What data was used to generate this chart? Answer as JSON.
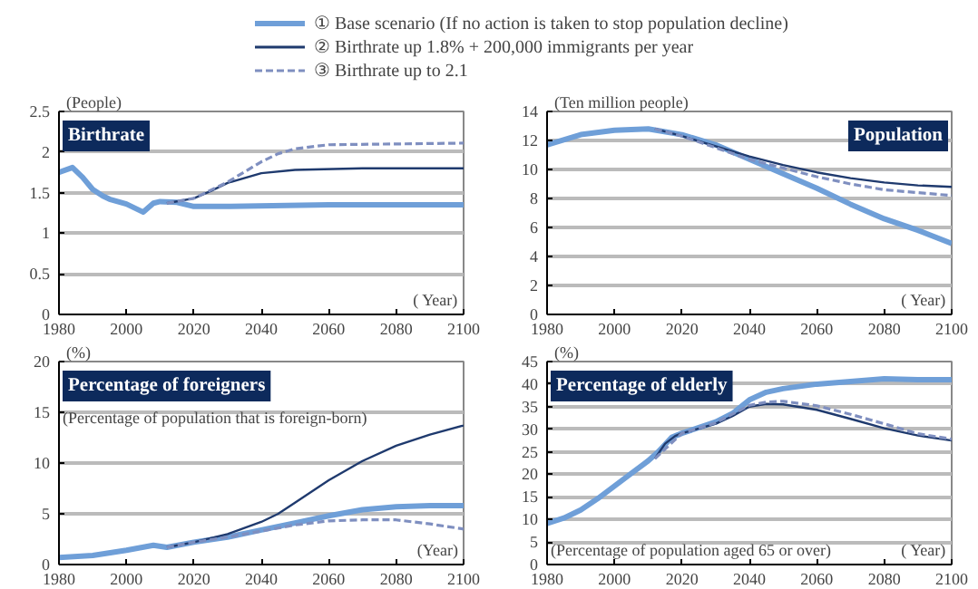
{
  "chart_data": [
    {
      "type": "line",
      "title": "Birthrate",
      "ylabel": "(People)",
      "xlabel": "( Year)",
      "xlim": [
        1980,
        2100
      ],
      "xticks": [
        1980,
        2000,
        2020,
        2040,
        2060,
        2080,
        2100
      ],
      "ylim": [
        0,
        2.5
      ],
      "yticks": [
        0,
        {
          "value": 0.5,
          "label": "0.5"
        },
        1,
        {
          "value": 1.5,
          "label": "1.5"
        },
        2,
        {
          "value": 2.5,
          "label": "2.5"
        }
      ],
      "grid": "y",
      "legend": "top",
      "series": [
        {
          "name": "① Base scenario (If no action is taken to stop population decline)",
          "color": "#6f9fd8",
          "line_style": "solid",
          "x": [
            1980,
            1984,
            1987,
            1990,
            1993,
            1995,
            2000,
            2005,
            2008,
            2010,
            2015,
            2020,
            2030,
            2060,
            2100
          ],
          "values": [
            1.75,
            1.81,
            1.69,
            1.54,
            1.46,
            1.42,
            1.36,
            1.26,
            1.37,
            1.39,
            1.38,
            1.33,
            1.33,
            1.35,
            1.35
          ]
        },
        {
          "name": "② Birthrate up 1.8% + 200,000 immigrants per year",
          "color": "#1f3a6e",
          "line_style": "solid",
          "x": [
            2012,
            2020,
            2025,
            2030,
            2040,
            2050,
            2070,
            2100
          ],
          "values": [
            1.37,
            1.43,
            1.52,
            1.62,
            1.74,
            1.78,
            1.8,
            1.8
          ]
        },
        {
          "name": "③ Birthrate up to 2.1",
          "color": "#7f8fc0",
          "line_style": "dashed",
          "x": [
            2012,
            2020,
            2030,
            2040,
            2045,
            2050,
            2060,
            2080,
            2100
          ],
          "values": [
            1.37,
            1.43,
            1.63,
            1.88,
            1.98,
            2.04,
            2.09,
            2.1,
            2.11
          ]
        }
      ]
    },
    {
      "type": "line",
      "title": "Population",
      "ylabel": "(Ten million people)",
      "xlabel": "( Year)",
      "xlim": [
        1980,
        2100
      ],
      "xticks": [
        1980,
        2000,
        2020,
        2040,
        2060,
        2080,
        2100
      ],
      "ylim": [
        0,
        14
      ],
      "yticks": [
        0,
        2,
        4,
        6,
        8,
        10,
        12,
        14
      ],
      "grid": "y",
      "series": [
        {
          "color": "#6f9fd8",
          "line_style": "solid",
          "x": [
            1980,
            1990,
            2000,
            2010,
            2020,
            2030,
            2040,
            2050,
            2060,
            2070,
            2080,
            2090,
            2100
          ],
          "values": [
            11.7,
            12.4,
            12.7,
            12.8,
            12.4,
            11.7,
            10.7,
            9.7,
            8.7,
            7.6,
            6.6,
            5.8,
            4.9
          ]
        },
        {
          "color": "#1f3a6e",
          "line_style": "solid",
          "x": [
            2012,
            2020,
            2030,
            2040,
            2050,
            2060,
            2070,
            2080,
            2090,
            2100
          ],
          "values": [
            12.8,
            12.3,
            11.6,
            10.9,
            10.3,
            9.8,
            9.4,
            9.1,
            8.9,
            8.8
          ]
        },
        {
          "color": "#7f8fc0",
          "line_style": "dashed",
          "x": [
            2012,
            2020,
            2030,
            2040,
            2050,
            2060,
            2070,
            2080,
            2090,
            2100
          ],
          "values": [
            12.8,
            12.3,
            11.5,
            10.7,
            10.1,
            9.5,
            9.0,
            8.6,
            8.4,
            8.2
          ]
        }
      ]
    },
    {
      "type": "line",
      "title": "Percentage of foreigners",
      "subtitle": "(Percentage of population that is foreign-born)",
      "ylabel": "(%)",
      "xlabel": "(Year)",
      "xlim": [
        1980,
        2100
      ],
      "xticks": [
        1980,
        2000,
        2020,
        2040,
        2060,
        2080,
        2100
      ],
      "ylim": [
        0,
        20
      ],
      "yticks": [
        0,
        5,
        10,
        15,
        20
      ],
      "grid": "y",
      "series": [
        {
          "color": "#6f9fd8",
          "line_style": "solid",
          "x": [
            1980,
            1990,
            2000,
            2008,
            2012,
            2020,
            2030,
            2040,
            2050,
            2060,
            2070,
            2080,
            2090,
            2100
          ],
          "values": [
            0.7,
            0.9,
            1.4,
            1.9,
            1.7,
            2.2,
            2.7,
            3.4,
            4.1,
            4.8,
            5.4,
            5.7,
            5.8,
            5.8
          ]
        },
        {
          "color": "#1f3a6e",
          "line_style": "solid",
          "x": [
            2012,
            2020,
            2030,
            2040,
            2045,
            2050,
            2060,
            2070,
            2080,
            2090,
            2100
          ],
          "values": [
            1.7,
            2.2,
            3.0,
            4.2,
            5.0,
            6.1,
            8.3,
            10.2,
            11.7,
            12.8,
            13.7
          ]
        },
        {
          "color": "#7f8fc0",
          "line_style": "dashed",
          "x": [
            2012,
            2020,
            2030,
            2040,
            2050,
            2060,
            2070,
            2080,
            2090,
            2100
          ],
          "values": [
            1.7,
            2.2,
            2.7,
            3.3,
            3.9,
            4.3,
            4.4,
            4.4,
            4.0,
            3.5
          ]
        }
      ]
    },
    {
      "type": "line",
      "title": "Percentage of elderly",
      "subtitle": "(Percentage of population aged 65 or over)",
      "ylabel": "(%)",
      "xlabel": "( Year)",
      "xlim": [
        1980,
        2100
      ],
      "xticks": [
        1980,
        2000,
        2020,
        2040,
        2060,
        2080,
        2100
      ],
      "ylim": [
        0,
        45
      ],
      "yticks": [
        0,
        5,
        10,
        15,
        20,
        25,
        30,
        35,
        40,
        45
      ],
      "grid": "y",
      "series": [
        {
          "color": "#6f9fd8",
          "line_style": "solid",
          "x": [
            1980,
            1985,
            1990,
            1995,
            2000,
            2005,
            2010,
            2013,
            2017,
            2020,
            2030,
            2035,
            2040,
            2045,
            2050,
            2060,
            2070,
            2080,
            2090,
            2100
          ],
          "values": [
            9.1,
            10.3,
            12.1,
            14.6,
            17.4,
            20.2,
            23.0,
            25.0,
            28.2,
            29.1,
            31.6,
            33.5,
            36.5,
            38.2,
            39.0,
            40.0,
            40.6,
            41.2,
            41.0,
            41.0
          ]
        },
        {
          "color": "#1f3a6e",
          "line_style": "solid",
          "x": [
            2012,
            2015,
            2018,
            2020,
            2030,
            2035,
            2040,
            2045,
            2050,
            2060,
            2070,
            2080,
            2090,
            2100
          ],
          "values": [
            23.5,
            26.8,
            28.5,
            29.1,
            31.2,
            32.9,
            35.0,
            35.6,
            35.5,
            34.3,
            32.3,
            30.2,
            28.6,
            27.5
          ]
        },
        {
          "color": "#7f8fc0",
          "line_style": "dashed",
          "x": [
            2012,
            2020,
            2030,
            2040,
            2045,
            2050,
            2060,
            2070,
            2080,
            2090,
            2100
          ],
          "values": [
            23.5,
            29.1,
            31.4,
            35.3,
            36.0,
            36.2,
            35.2,
            33.3,
            31.2,
            29.0,
            27.8
          ]
        }
      ]
    }
  ]
}
